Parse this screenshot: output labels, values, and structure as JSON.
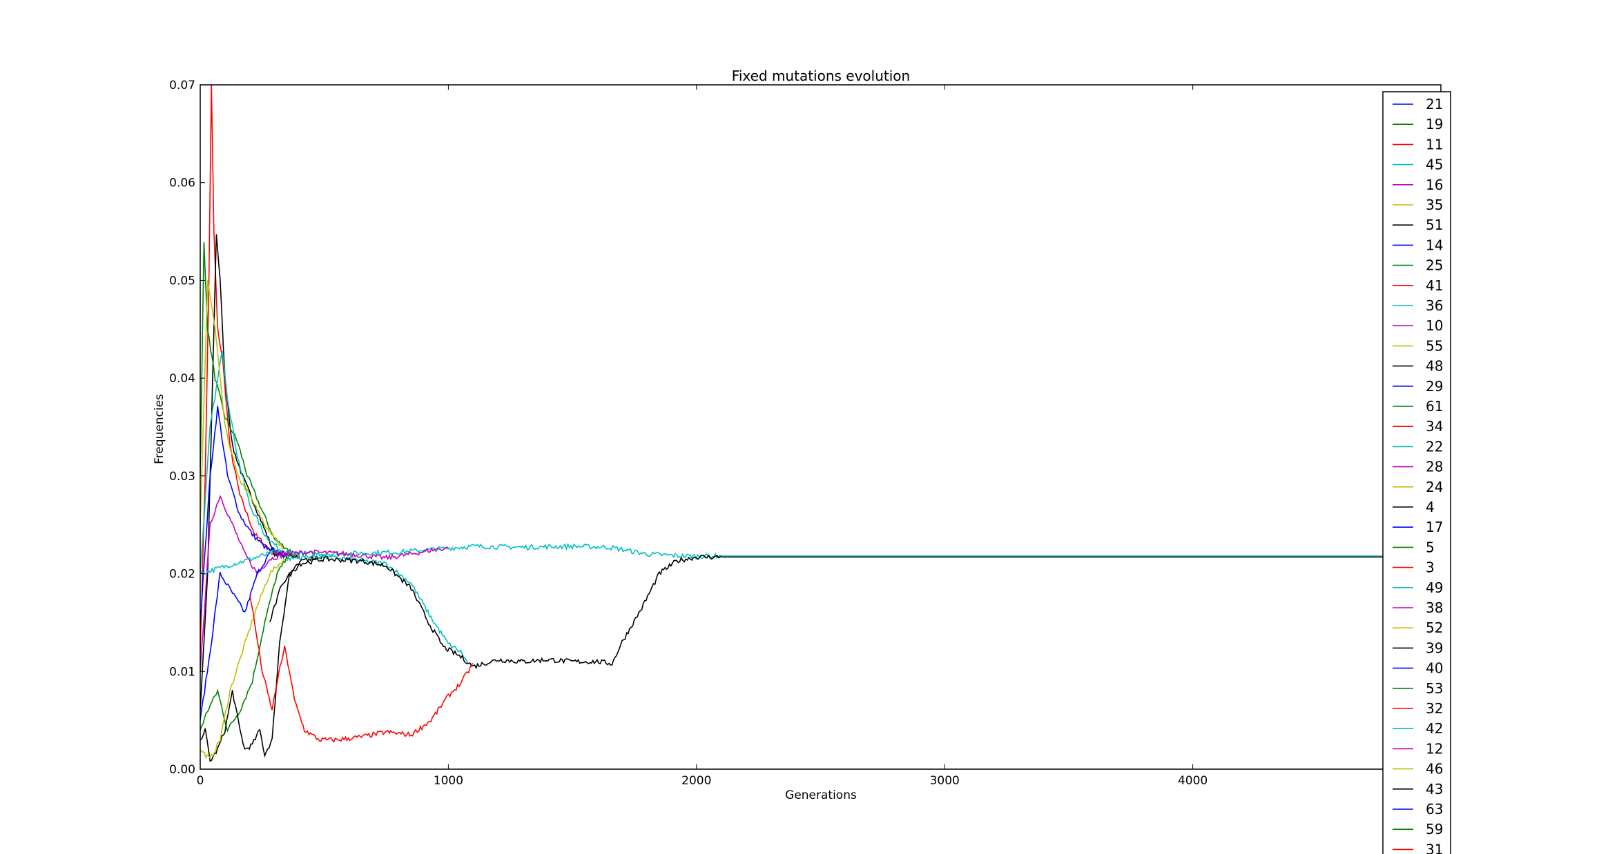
{
  "chart_data": {
    "type": "line",
    "title": "Fixed mutations evolution",
    "xlabel": "Generations",
    "ylabel": "Frequencies",
    "xlim": [
      0,
      5000
    ],
    "ylim": [
      0,
      0.07
    ],
    "xticks": [
      0,
      1000,
      2000,
      3000,
      4000
    ],
    "xtick_labels": [
      "0",
      "1000",
      "2000",
      "3000",
      "4000"
    ],
    "yticks": [
      0,
      0.01,
      0.02,
      0.03,
      0.04,
      0.05,
      0.06,
      0.07
    ],
    "ytick_labels": [
      "0.00",
      "0.01",
      "0.02",
      "0.03",
      "0.04",
      "0.05",
      "0.06",
      "0.07"
    ],
    "grid": false,
    "legend_position": "right",
    "legend": [
      {
        "name": "21",
        "color": "#0000ff"
      },
      {
        "name": "19",
        "color": "#008000"
      },
      {
        "name": "11",
        "color": "#ff0000"
      },
      {
        "name": "45",
        "color": "#00bfbf"
      },
      {
        "name": "16",
        "color": "#bf00bf"
      },
      {
        "name": "35",
        "color": "#bfbf00"
      },
      {
        "name": "51",
        "color": "#000000"
      },
      {
        "name": "14",
        "color": "#0000ff"
      },
      {
        "name": "25",
        "color": "#008000"
      },
      {
        "name": "41",
        "color": "#ff0000"
      },
      {
        "name": "36",
        "color": "#00bfbf"
      },
      {
        "name": "10",
        "color": "#bf00bf"
      },
      {
        "name": "55",
        "color": "#bfbf00"
      },
      {
        "name": "48",
        "color": "#000000"
      },
      {
        "name": "29",
        "color": "#0000ff"
      },
      {
        "name": "61",
        "color": "#008000"
      },
      {
        "name": "34",
        "color": "#ff0000"
      },
      {
        "name": "22",
        "color": "#00bfbf"
      },
      {
        "name": "28",
        "color": "#bf00bf"
      },
      {
        "name": "24",
        "color": "#bfbf00"
      },
      {
        "name": "4",
        "color": "#000000"
      },
      {
        "name": "17",
        "color": "#0000ff"
      },
      {
        "name": "5",
        "color": "#008000"
      },
      {
        "name": "3",
        "color": "#ff0000"
      },
      {
        "name": "49",
        "color": "#00bfbf"
      },
      {
        "name": "38",
        "color": "#bf00bf"
      },
      {
        "name": "52",
        "color": "#bfbf00"
      },
      {
        "name": "39",
        "color": "#000000"
      },
      {
        "name": "40",
        "color": "#0000ff"
      },
      {
        "name": "53",
        "color": "#008000"
      },
      {
        "name": "32",
        "color": "#ff0000"
      },
      {
        "name": "42",
        "color": "#00bfbf"
      },
      {
        "name": "12",
        "color": "#bf00bf"
      },
      {
        "name": "46",
        "color": "#bfbf00"
      },
      {
        "name": "43",
        "color": "#000000"
      },
      {
        "name": "63",
        "color": "#0000ff"
      },
      {
        "name": "59",
        "color": "#008000"
      },
      {
        "name": "31",
        "color": "#ff0000"
      }
    ],
    "series": [
      {
        "color": "#ff0000",
        "points": [
          [
            0,
            0.012
          ],
          [
            20,
            0.03
          ],
          [
            35,
            0.05
          ],
          [
            45,
            0.07
          ],
          [
            55,
            0.055
          ],
          [
            70,
            0.045
          ],
          [
            90,
            0.042
          ],
          [
            120,
            0.033
          ],
          [
            160,
            0.028
          ],
          [
            220,
            0.024
          ],
          [
            300,
            0.022
          ],
          [
            400,
            0.0218
          ]
        ]
      },
      {
        "color": "#000000",
        "points": [
          [
            0,
            0.006
          ],
          [
            30,
            0.02
          ],
          [
            50,
            0.04
          ],
          [
            65,
            0.0548
          ],
          [
            80,
            0.05
          ],
          [
            100,
            0.04
          ],
          [
            130,
            0.033
          ],
          [
            170,
            0.03
          ],
          [
            220,
            0.027
          ],
          [
            300,
            0.022
          ],
          [
            400,
            0.0218
          ]
        ]
      },
      {
        "color": "#008000",
        "points": [
          [
            0,
            0.03
          ],
          [
            15,
            0.0538
          ],
          [
            30,
            0.045
          ],
          [
            60,
            0.04
          ],
          [
            100,
            0.036
          ],
          [
            150,
            0.0335
          ],
          [
            190,
            0.03
          ],
          [
            240,
            0.027
          ],
          [
            300,
            0.0235
          ],
          [
            380,
            0.022
          ]
        ]
      },
      {
        "color": "#00bfbf",
        "points": [
          [
            0,
            0.02
          ],
          [
            40,
            0.035
          ],
          [
            90,
            0.043
          ],
          [
            110,
            0.038
          ],
          [
            150,
            0.032
          ],
          [
            200,
            0.027
          ],
          [
            260,
            0.024
          ],
          [
            330,
            0.0222
          ],
          [
            400,
            0.0218
          ]
        ]
      },
      {
        "color": "#bfbf00",
        "points": [
          [
            0,
            0.025
          ],
          [
            30,
            0.05
          ],
          [
            60,
            0.045
          ],
          [
            100,
            0.035
          ],
          [
            150,
            0.03
          ],
          [
            200,
            0.028
          ],
          [
            260,
            0.025
          ],
          [
            350,
            0.022
          ]
        ]
      },
      {
        "color": "#0000ff",
        "points": [
          [
            0,
            0.015
          ],
          [
            40,
            0.03
          ],
          [
            70,
            0.037
          ],
          [
            110,
            0.03
          ],
          [
            160,
            0.026
          ],
          [
            210,
            0.024
          ],
          [
            270,
            0.0225
          ],
          [
            350,
            0.0218
          ]
        ]
      },
      {
        "color": "#bf00bf",
        "points": [
          [
            0,
            0.01
          ],
          [
            40,
            0.025
          ],
          [
            80,
            0.028
          ],
          [
            130,
            0.025
          ],
          [
            180,
            0.022
          ],
          [
            230,
            0.02
          ],
          [
            280,
            0.0215
          ],
          [
            350,
            0.022
          ]
        ]
      },
      {
        "color": "#0000ff",
        "points": [
          [
            0,
            0.005
          ],
          [
            40,
            0.012
          ],
          [
            80,
            0.02
          ],
          [
            130,
            0.018
          ],
          [
            180,
            0.016
          ],
          [
            230,
            0.02
          ],
          [
            290,
            0.0225
          ],
          [
            350,
            0.022
          ]
        ]
      },
      {
        "color": "#008000",
        "points": [
          [
            0,
            0.004
          ],
          [
            30,
            0.006
          ],
          [
            70,
            0.008
          ],
          [
            110,
            0.004
          ],
          [
            160,
            0.006
          ],
          [
            210,
            0.009
          ],
          [
            260,
            0.015
          ],
          [
            310,
            0.02
          ],
          [
            360,
            0.022
          ]
        ]
      },
      {
        "color": "#000000",
        "points": [
          [
            0,
            0.003
          ],
          [
            20,
            0.004
          ],
          [
            40,
            0.0008
          ],
          [
            70,
            0.002
          ],
          [
            100,
            0.004
          ],
          [
            130,
            0.008
          ],
          [
            160,
            0.004
          ],
          [
            180,
            0.002
          ],
          [
            210,
            0.0025
          ],
          [
            240,
            0.004
          ],
          [
            260,
            0.0015
          ],
          [
            290,
            0.003
          ],
          [
            320,
            0.013
          ],
          [
            360,
            0.02
          ],
          [
            420,
            0.0215
          ],
          [
            500,
            0.0218
          ]
        ]
      },
      {
        "color": "#bfbf00",
        "points": [
          [
            0,
            0.002
          ],
          [
            40,
            0.001
          ],
          [
            80,
            0.003
          ],
          [
            120,
            0.008
          ],
          [
            170,
            0.012
          ],
          [
            220,
            0.016
          ],
          [
            280,
            0.02
          ],
          [
            340,
            0.0215
          ]
        ]
      },
      {
        "color": "#00bfbf",
        "points": [
          [
            0,
            0.02
          ],
          [
            300,
            0.0222
          ],
          [
            500,
            0.022
          ],
          [
            800,
            0.0222
          ],
          [
            950,
            0.0225
          ],
          [
            1100,
            0.0228
          ],
          [
            1300,
            0.0227
          ],
          [
            1500,
            0.0228
          ],
          [
            1650,
            0.0227
          ],
          [
            1800,
            0.022
          ],
          [
            1950,
            0.0218
          ],
          [
            2100,
            0.0218
          ],
          [
            5000,
            0.0218
          ]
        ]
      },
      {
        "color": "#bf00bf",
        "points": [
          [
            300,
            0.022
          ],
          [
            450,
            0.0222
          ],
          [
            600,
            0.022
          ],
          [
            750,
            0.0216
          ],
          [
            850,
            0.022
          ],
          [
            950,
            0.0225
          ],
          [
            1000,
            0.0226
          ]
        ]
      },
      {
        "color": "#00bfbf",
        "points": [
          [
            350,
            0.0215
          ],
          [
            450,
            0.0218
          ],
          [
            600,
            0.0215
          ],
          [
            750,
            0.021
          ],
          [
            850,
            0.019
          ],
          [
            930,
            0.0155
          ],
          [
            1000,
            0.0128
          ],
          [
            1050,
            0.012
          ],
          [
            1080,
            0.0108
          ]
        ]
      },
      {
        "color": "#000000",
        "points": [
          [
            280,
            0.015
          ],
          [
            330,
            0.019
          ],
          [
            400,
            0.021
          ],
          [
            500,
            0.0215
          ],
          [
            650,
            0.0213
          ],
          [
            750,
            0.0208
          ],
          [
            850,
            0.0185
          ],
          [
            920,
            0.015
          ],
          [
            980,
            0.0125
          ],
          [
            1050,
            0.0115
          ],
          [
            1100,
            0.0105
          ],
          [
            1200,
            0.0112
          ],
          [
            1300,
            0.011
          ],
          [
            1400,
            0.0112
          ],
          [
            1500,
            0.011
          ],
          [
            1600,
            0.011
          ],
          [
            1660,
            0.0108
          ],
          [
            1700,
            0.013
          ],
          [
            1780,
            0.0165
          ],
          [
            1850,
            0.02
          ],
          [
            1920,
            0.0213
          ],
          [
            2000,
            0.0217
          ],
          [
            5000,
            0.0217
          ]
        ]
      },
      {
        "color": "#ff0000",
        "points": [
          [
            200,
            0.018
          ],
          [
            250,
            0.01
          ],
          [
            290,
            0.006
          ],
          [
            310,
            0.009
          ],
          [
            340,
            0.0124
          ],
          [
            360,
            0.01
          ],
          [
            380,
            0.007
          ],
          [
            420,
            0.004
          ],
          [
            480,
            0.003
          ],
          [
            550,
            0.003
          ],
          [
            650,
            0.0033
          ],
          [
            750,
            0.0038
          ],
          [
            850,
            0.0035
          ],
          [
            930,
            0.005
          ],
          [
            1000,
            0.0075
          ],
          [
            1050,
            0.0088
          ],
          [
            1100,
            0.0108
          ]
        ]
      }
    ]
  }
}
